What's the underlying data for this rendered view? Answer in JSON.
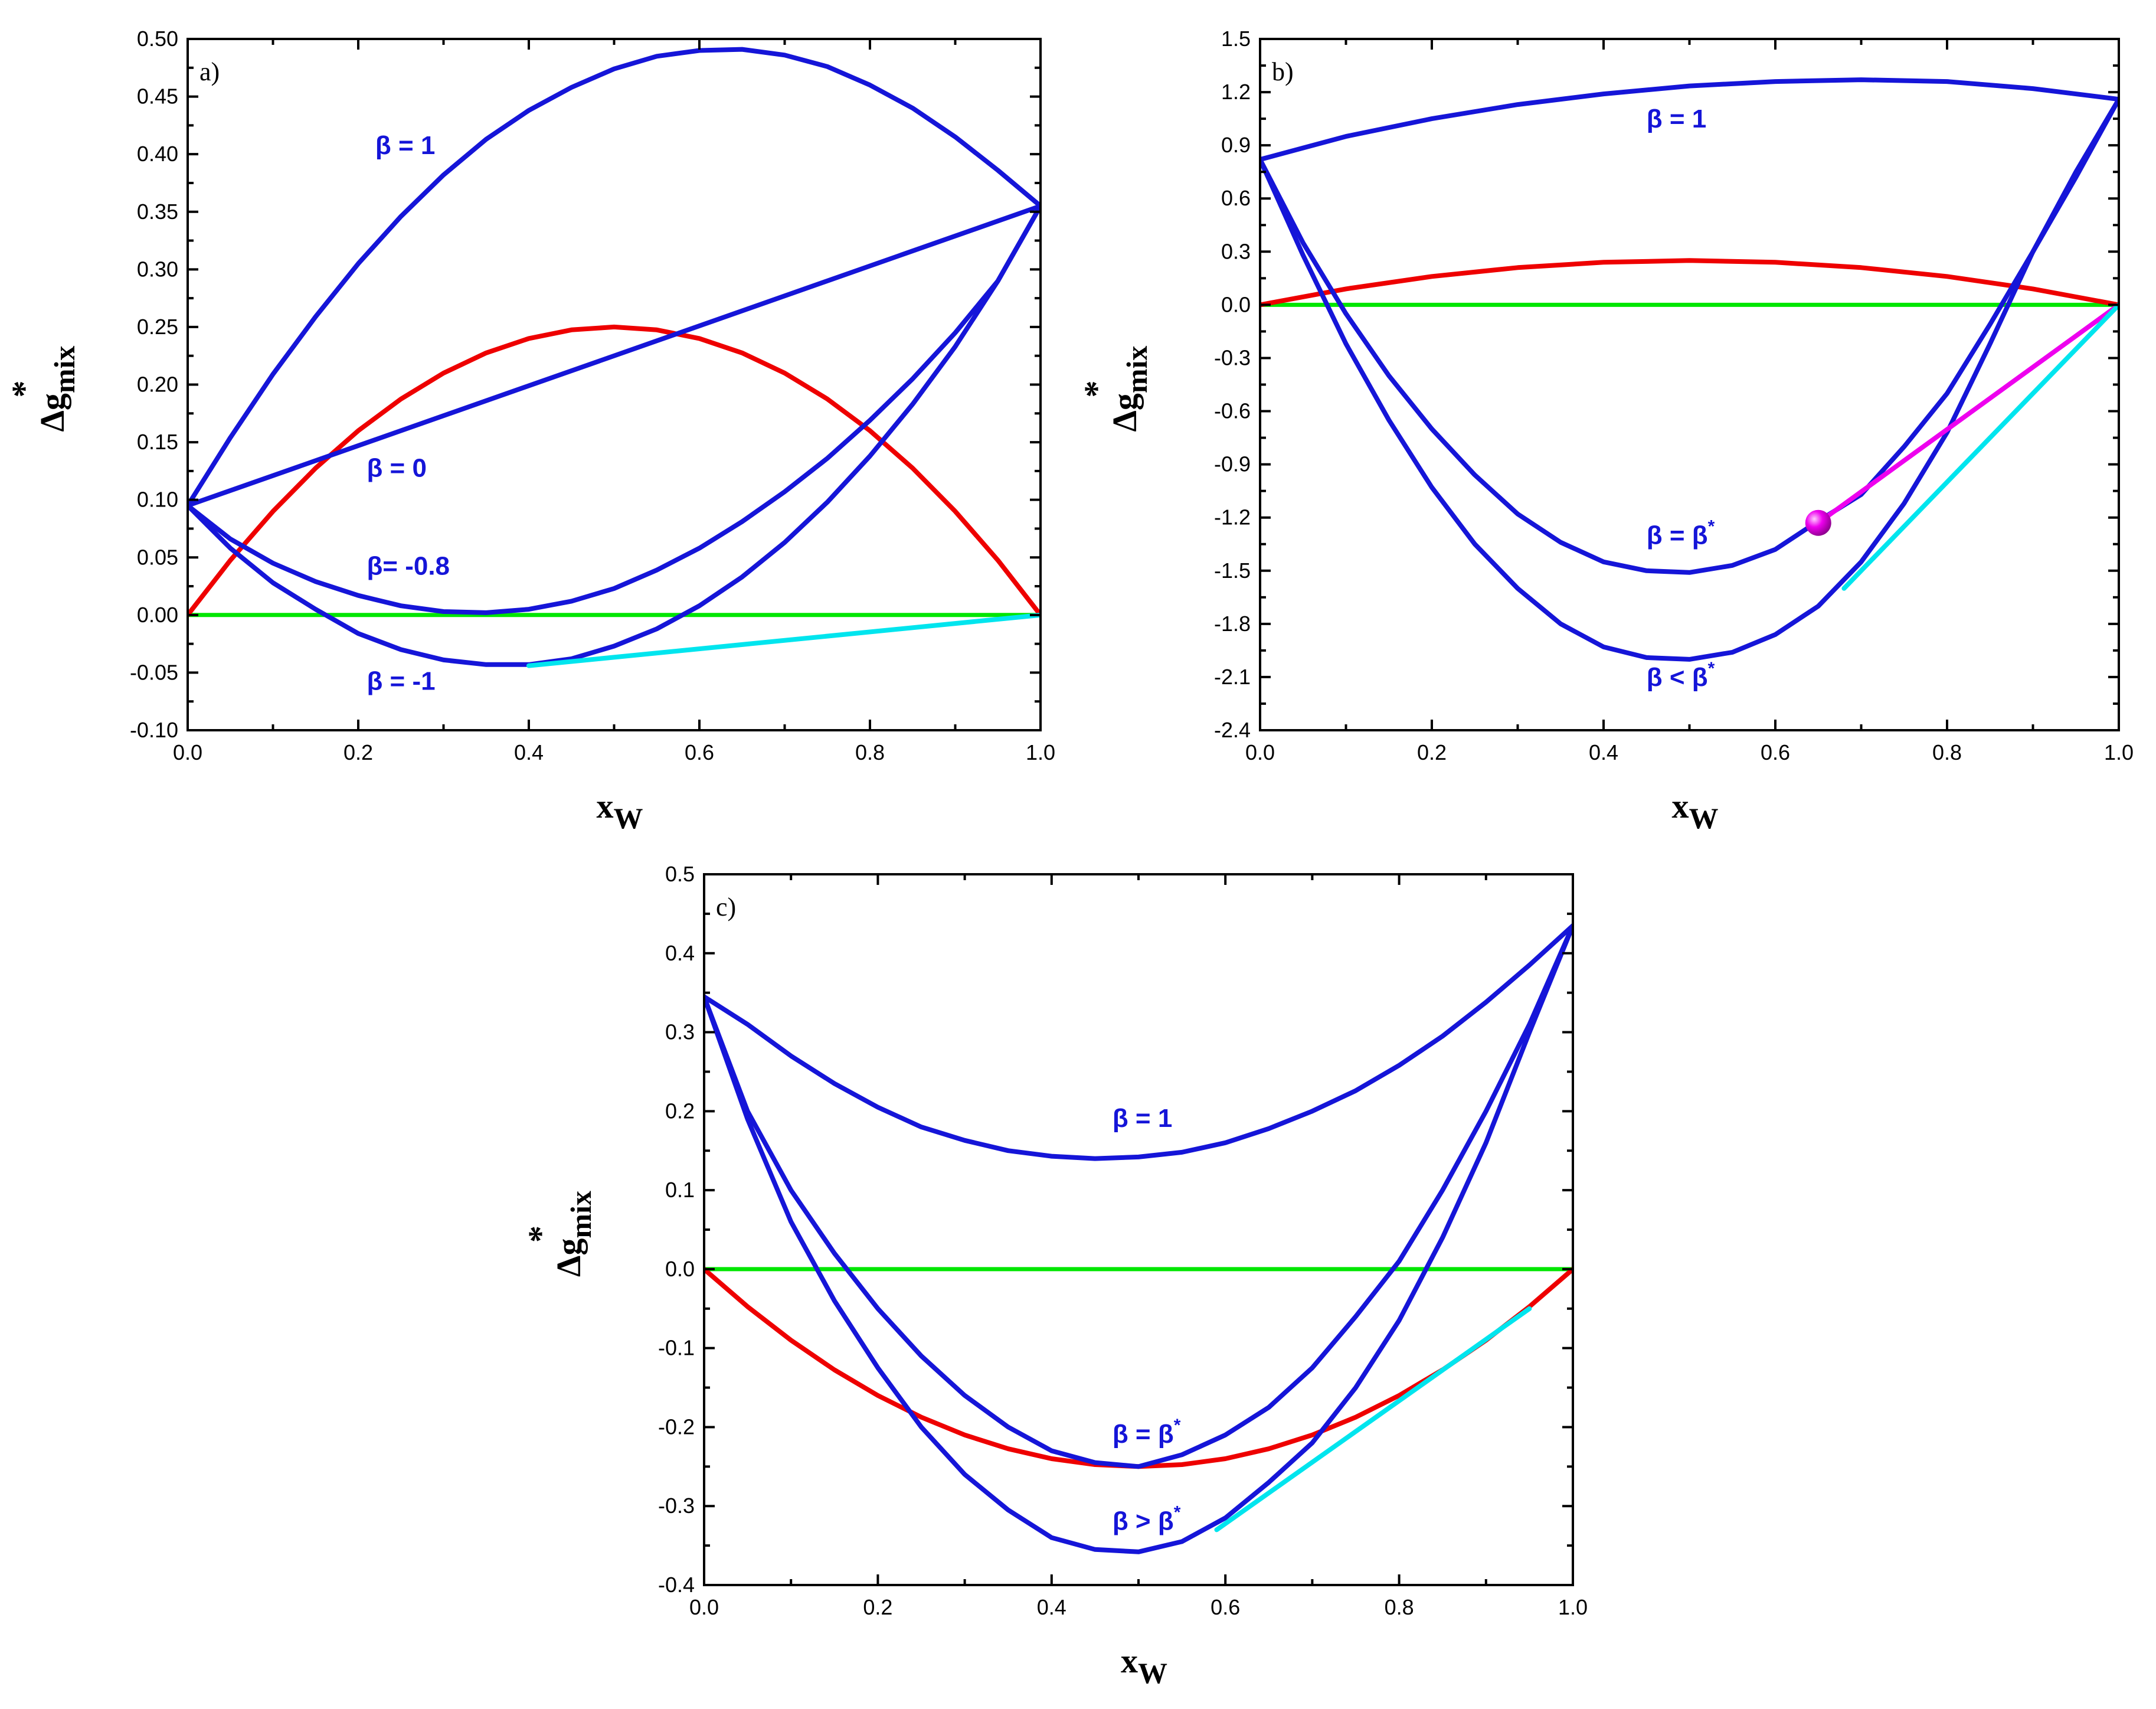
{
  "chart_data": [
    {
      "type": "line",
      "panel_label": "a)",
      "xlabel": "x",
      "xlabel_sub": "W",
      "ylabel": "Δg",
      "ylabel_sub": "mix",
      "ylabel_sup": "*",
      "xlim": [
        0,
        1
      ],
      "ylim": [
        -0.1,
        0.5
      ],
      "xticks": [
        0.0,
        0.2,
        0.4,
        0.6,
        0.8,
        1.0
      ],
      "xtick_labels": [
        "0.0",
        "0.2",
        "0.4",
        "0.6",
        "0.8",
        "1.0"
      ],
      "yticks": [
        -0.1,
        -0.05,
        0.0,
        0.05,
        0.1,
        0.15,
        0.2,
        0.25,
        0.3,
        0.35,
        0.4,
        0.45,
        0.5
      ],
      "ytick_labels": [
        "-0.10",
        "-0.05",
        "0.00",
        "0.05",
        "0.10",
        "0.15",
        "0.20",
        "0.25",
        "0.30",
        "0.35",
        "0.40",
        "0.45",
        "0.50"
      ],
      "series": [
        {
          "name": "zero line",
          "color": "#00e600",
          "x": [
            0,
            1
          ],
          "y": [
            0,
            0
          ]
        },
        {
          "name": "ideal mixing",
          "color": "#ee0000",
          "x": [
            0,
            0.05,
            0.1,
            0.15,
            0.2,
            0.25,
            0.3,
            0.35,
            0.4,
            0.45,
            0.5,
            0.55,
            0.6,
            0.65,
            0.7,
            0.75,
            0.8,
            0.85,
            0.9,
            0.95,
            1
          ],
          "y": [
            0,
            0.0475,
            0.09,
            0.1275,
            0.16,
            0.1875,
            0.21,
            0.2275,
            0.24,
            0.2475,
            0.25,
            0.2475,
            0.24,
            0.2275,
            0.21,
            0.1875,
            0.16,
            0.1275,
            0.09,
            0.0475,
            0
          ]
        },
        {
          "name": "β = 1",
          "color": "#1515d8",
          "x": [
            0,
            0.05,
            0.1,
            0.15,
            0.2,
            0.25,
            0.3,
            0.35,
            0.4,
            0.45,
            0.5,
            0.55,
            0.6,
            0.65,
            0.7,
            0.75,
            0.8,
            0.85,
            0.9,
            0.95,
            1
          ],
          "y": [
            0.095,
            0.154,
            0.209,
            0.259,
            0.305,
            0.346,
            0.382,
            0.413,
            0.438,
            0.458,
            0.474,
            0.485,
            0.49,
            0.491,
            0.486,
            0.476,
            0.46,
            0.44,
            0.415,
            0.386,
            0.355
          ]
        },
        {
          "name": "β = 0",
          "color": "#1515d8",
          "x": [
            0,
            1
          ],
          "y": [
            0.095,
            0.355
          ]
        },
        {
          "name": "β= -0.8",
          "color": "#1515d8",
          "x": [
            0,
            0.05,
            0.1,
            0.15,
            0.2,
            0.25,
            0.3,
            0.35,
            0.4,
            0.45,
            0.5,
            0.55,
            0.6,
            0.65,
            0.7,
            0.75,
            0.8,
            0.85,
            0.9,
            0.95,
            1
          ],
          "y": [
            0.095,
            0.066,
            0.045,
            0.029,
            0.017,
            0.008,
            0.003,
            0.002,
            0.005,
            0.012,
            0.023,
            0.039,
            0.058,
            0.081,
            0.107,
            0.136,
            0.169,
            0.205,
            0.245,
            0.29,
            0.355
          ]
        },
        {
          "name": "β = -1",
          "color": "#1515d8",
          "x": [
            0,
            0.05,
            0.1,
            0.15,
            0.2,
            0.25,
            0.3,
            0.35,
            0.4,
            0.45,
            0.5,
            0.55,
            0.6,
            0.65,
            0.7,
            0.75,
            0.8,
            0.85,
            0.9,
            0.95,
            1
          ],
          "y": [
            0.095,
            0.058,
            0.028,
            0.005,
            -0.016,
            -0.03,
            -0.039,
            -0.043,
            -0.043,
            -0.038,
            -0.027,
            -0.012,
            0.008,
            0.033,
            0.063,
            0.098,
            0.138,
            0.183,
            0.233,
            0.29,
            0.355
          ]
        },
        {
          "name": "common tangent",
          "color": "#00e5ee",
          "x": [
            0.4,
            1
          ],
          "y": [
            -0.044,
            0
          ]
        }
      ],
      "annotations": [
        {
          "text": "β = 1",
          "x": 0.22,
          "y": 0.4
        },
        {
          "text": "β = 0",
          "x": 0.21,
          "y": 0.12
        },
        {
          "text": "β= -0.8",
          "x": 0.21,
          "y": 0.035
        },
        {
          "text": "β = -1",
          "x": 0.21,
          "y": -0.065
        }
      ]
    },
    {
      "type": "line",
      "panel_label": "b)",
      "xlabel": "x",
      "xlabel_sub": "W",
      "ylabel": "Δg",
      "ylabel_sub": "mix",
      "ylabel_sup": "*",
      "xlim": [
        0,
        1
      ],
      "ylim": [
        -2.4,
        1.5
      ],
      "xticks": [
        0.0,
        0.2,
        0.4,
        0.6,
        0.8,
        1.0
      ],
      "xtick_labels": [
        "0.0",
        "0.2",
        "0.4",
        "0.6",
        "0.8",
        "1.0"
      ],
      "yticks": [
        -2.4,
        -2.1,
        -1.8,
        -1.5,
        -1.2,
        -0.9,
        -0.6,
        -0.3,
        0.0,
        0.3,
        0.6,
        0.9,
        1.2,
        1.5
      ],
      "ytick_labels": [
        "-2.4",
        "-2.1",
        "-1.8",
        "-1.5",
        "-1.2",
        "-0.9",
        "-0.6",
        "-0.3",
        "0.0",
        "0.3",
        "0.6",
        "0.9",
        "1.2",
        "1.5"
      ],
      "series": [
        {
          "name": "zero line",
          "color": "#00e600",
          "x": [
            0,
            1
          ],
          "y": [
            0,
            0
          ]
        },
        {
          "name": "ideal mixing",
          "color": "#ee0000",
          "x": [
            0,
            0.1,
            0.2,
            0.3,
            0.4,
            0.5,
            0.6,
            0.7,
            0.8,
            0.9,
            1
          ],
          "y": [
            0,
            0.09,
            0.16,
            0.21,
            0.24,
            0.25,
            0.24,
            0.21,
            0.16,
            0.09,
            0
          ]
        },
        {
          "name": "β = 1",
          "color": "#1515d8",
          "x": [
            0,
            0.1,
            0.2,
            0.3,
            0.4,
            0.5,
            0.6,
            0.7,
            0.8,
            0.9,
            1
          ],
          "y": [
            0.82,
            0.95,
            1.05,
            1.13,
            1.19,
            1.235,
            1.26,
            1.27,
            1.26,
            1.22,
            1.16
          ]
        },
        {
          "name": "β = β*",
          "color": "#1515d8",
          "x": [
            0,
            0.05,
            0.1,
            0.15,
            0.2,
            0.25,
            0.3,
            0.35,
            0.4,
            0.45,
            0.5,
            0.55,
            0.6,
            0.65,
            0.7,
            0.75,
            0.8,
            0.85,
            0.9,
            0.95,
            1
          ],
          "y": [
            0.82,
            0.35,
            -0.05,
            -0.4,
            -0.7,
            -0.96,
            -1.18,
            -1.34,
            -1.45,
            -1.5,
            -1.51,
            -1.47,
            -1.38,
            -1.22,
            -1.07,
            -0.8,
            -0.5,
            -0.11,
            0.3,
            0.72,
            1.16
          ]
        },
        {
          "name": "β < β*",
          "color": "#1515d8",
          "x": [
            0,
            0.05,
            0.1,
            0.15,
            0.2,
            0.25,
            0.3,
            0.35,
            0.4,
            0.45,
            0.5,
            0.55,
            0.6,
            0.65,
            0.7,
            0.75,
            0.8,
            0.85,
            0.9,
            0.95,
            1
          ],
          "y": [
            0.82,
            0.28,
            -0.22,
            -0.65,
            -1.03,
            -1.35,
            -1.6,
            -1.8,
            -1.93,
            -1.99,
            -2.0,
            -1.96,
            -1.86,
            -1.7,
            -1.45,
            -1.12,
            -0.72,
            -0.22,
            0.3,
            0.75,
            1.16
          ]
        },
        {
          "name": "tangent β = β*",
          "color": "#ee00ee",
          "x": [
            0.65,
            1
          ],
          "y": [
            -1.23,
            0
          ]
        },
        {
          "name": "tangent β < β*",
          "color": "#00e5ee",
          "x": [
            0.68,
            1
          ],
          "y": [
            -1.6,
            0
          ]
        }
      ],
      "markers": [
        {
          "x": 0.65,
          "y": -1.23,
          "color": "#ee00ee"
        }
      ],
      "annotations": [
        {
          "text": "β = 1",
          "x": 0.45,
          "y": 1.0
        },
        {
          "text": "β = β",
          "sup": "*",
          "x": 0.45,
          "y": -1.35
        },
        {
          "text": "β < β",
          "sup": "*",
          "x": 0.45,
          "y": -2.15
        }
      ]
    },
    {
      "type": "line",
      "panel_label": "c)",
      "xlabel": "x",
      "xlabel_sub": "W",
      "ylabel": "Δg",
      "ylabel_sub": "mix",
      "ylabel_sup": "*",
      "xlim": [
        0,
        1
      ],
      "ylim": [
        -0.4,
        0.5
      ],
      "xticks": [
        0.0,
        0.2,
        0.4,
        0.6,
        0.8,
        1.0
      ],
      "xtick_labels": [
        "0.0",
        "0.2",
        "0.4",
        "0.6",
        "0.8",
        "1.0"
      ],
      "yticks": [
        -0.4,
        -0.3,
        -0.2,
        -0.1,
        0.0,
        0.1,
        0.2,
        0.3,
        0.4,
        0.5
      ],
      "ytick_labels": [
        "-0.4",
        "-0.3",
        "-0.2",
        "-0.1",
        "0.0",
        "0.1",
        "0.2",
        "0.3",
        "0.4",
        "0.5"
      ],
      "series": [
        {
          "name": "zero line",
          "color": "#00e600",
          "x": [
            0,
            1
          ],
          "y": [
            0,
            0
          ]
        },
        {
          "name": "ideal mixing",
          "color": "#ee0000",
          "x": [
            0,
            0.05,
            0.1,
            0.15,
            0.2,
            0.25,
            0.3,
            0.35,
            0.4,
            0.45,
            0.5,
            0.55,
            0.6,
            0.65,
            0.7,
            0.75,
            0.8,
            0.85,
            0.9,
            0.95,
            1
          ],
          "y": [
            0,
            -0.0475,
            -0.09,
            -0.1275,
            -0.16,
            -0.1875,
            -0.21,
            -0.2275,
            -0.24,
            -0.2475,
            -0.25,
            -0.2475,
            -0.24,
            -0.2275,
            -0.21,
            -0.1875,
            -0.16,
            -0.1275,
            -0.09,
            -0.0475,
            0
          ]
        },
        {
          "name": "β = 1",
          "color": "#1515d8",
          "x": [
            0,
            0.05,
            0.1,
            0.15,
            0.2,
            0.25,
            0.3,
            0.35,
            0.4,
            0.45,
            0.5,
            0.55,
            0.6,
            0.65,
            0.7,
            0.75,
            0.8,
            0.85,
            0.9,
            0.95,
            1
          ],
          "y": [
            0.345,
            0.31,
            0.27,
            0.235,
            0.205,
            0.18,
            0.163,
            0.15,
            0.143,
            0.14,
            0.142,
            0.148,
            0.16,
            0.178,
            0.2,
            0.226,
            0.258,
            0.295,
            0.338,
            0.385,
            0.435
          ]
        },
        {
          "name": "β = β*",
          "color": "#1515d8",
          "x": [
            0,
            0.05,
            0.1,
            0.15,
            0.2,
            0.25,
            0.3,
            0.35,
            0.4,
            0.45,
            0.5,
            0.55,
            0.6,
            0.65,
            0.7,
            0.75,
            0.8,
            0.85,
            0.9,
            0.95,
            1
          ],
          "y": [
            0.345,
            0.2,
            0.1,
            0.02,
            -0.05,
            -0.11,
            -0.16,
            -0.2,
            -0.23,
            -0.245,
            -0.25,
            -0.235,
            -0.21,
            -0.175,
            -0.125,
            -0.06,
            0.01,
            0.1,
            0.2,
            0.31,
            0.435
          ]
        },
        {
          "name": "β > β*",
          "color": "#1515d8",
          "x": [
            0,
            0.05,
            0.1,
            0.15,
            0.2,
            0.25,
            0.3,
            0.35,
            0.4,
            0.45,
            0.5,
            0.55,
            0.6,
            0.65,
            0.7,
            0.75,
            0.8,
            0.85,
            0.9,
            0.95,
            1
          ],
          "y": [
            0.345,
            0.19,
            0.06,
            -0.04,
            -0.125,
            -0.2,
            -0.26,
            -0.305,
            -0.34,
            -0.355,
            -0.358,
            -0.345,
            -0.315,
            -0.27,
            -0.22,
            -0.15,
            -0.065,
            0.04,
            0.16,
            0.3,
            0.435
          ]
        },
        {
          "name": "common tangent",
          "color": "#00e5ee",
          "x": [
            0.59,
            0.95
          ],
          "y": [
            -0.33,
            -0.05
          ]
        }
      ],
      "annotations": [
        {
          "text": "β = 1",
          "x": 0.47,
          "y": 0.18
        },
        {
          "text": "β = β",
          "sup": "*",
          "x": 0.47,
          "y": -0.22
        },
        {
          "text": "β > β",
          "sup": "*",
          "x": 0.47,
          "y": -0.33
        }
      ]
    }
  ]
}
